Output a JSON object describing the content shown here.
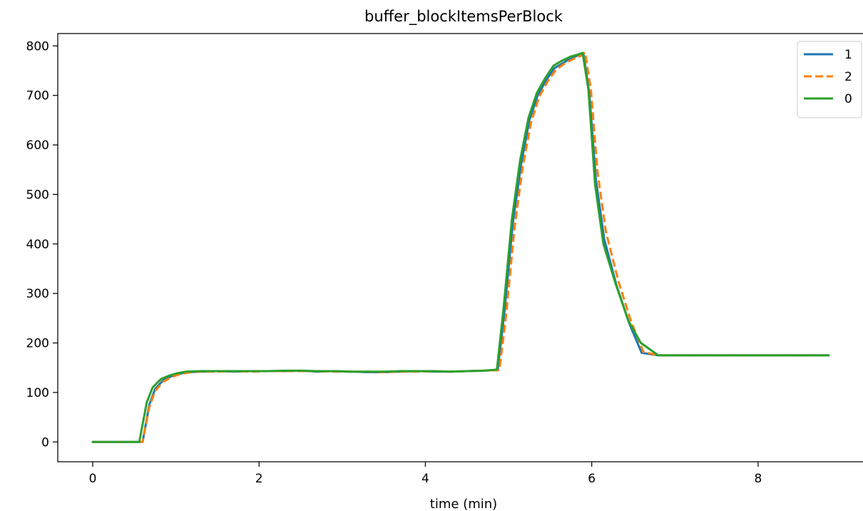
{
  "chart_data": {
    "type": "line",
    "title": "buffer_blockItemsPerBlock",
    "xlabel": "time (min)",
    "ylabel": "",
    "xlim": [
      -0.42,
      9.27
    ],
    "ylim": [
      -40,
      825
    ],
    "xticks": [
      0,
      2,
      4,
      6,
      8
    ],
    "yticks": [
      0,
      100,
      200,
      300,
      400,
      500,
      600,
      700,
      800
    ],
    "legend_position": "upper right",
    "grid": false,
    "series": [
      {
        "name": "1",
        "color": "#1f77b4",
        "dash": "solid",
        "x": [
          0,
          0.15,
          0.3,
          0.45,
          0.6,
          0.68,
          0.75,
          0.85,
          0.95,
          1.05,
          1.15,
          1.3,
          1.5,
          1.7,
          1.9,
          2.1,
          2.3,
          2.5,
          2.7,
          2.9,
          3.1,
          3.3,
          3.5,
          3.7,
          3.9,
          4.1,
          4.3,
          4.5,
          4.7,
          4.87,
          4.95,
          5.05,
          5.15,
          5.25,
          5.35,
          5.45,
          5.55,
          5.65,
          5.75,
          5.85,
          5.9,
          5.97,
          6.05,
          6.15,
          6.3,
          6.45,
          6.6,
          6.8,
          7.0,
          7.5,
          8.0,
          8.5,
          8.85
        ],
        "y": [
          0,
          0,
          0,
          0,
          0,
          75,
          107,
          125,
          133,
          138,
          141,
          142,
          143,
          142,
          143,
          143,
          143,
          144,
          142,
          143,
          142,
          141,
          141,
          142,
          143,
          142,
          142,
          143,
          144,
          146,
          262,
          440,
          560,
          650,
          700,
          730,
          755,
          765,
          775,
          782,
          785,
          705,
          530,
          410,
          315,
          240,
          180,
          175,
          175,
          175,
          175,
          175,
          175
        ]
      },
      {
        "name": "2",
        "color": "#ff7f0e",
        "dash": "dashed",
        "x": [
          0,
          0.15,
          0.3,
          0.45,
          0.6,
          0.68,
          0.75,
          0.85,
          0.95,
          1.05,
          1.15,
          1.3,
          1.5,
          1.7,
          1.9,
          2.1,
          2.3,
          2.5,
          2.7,
          2.9,
          3.1,
          3.3,
          3.5,
          3.7,
          3.9,
          4.1,
          4.3,
          4.5,
          4.7,
          4.89,
          4.97,
          5.07,
          5.17,
          5.27,
          5.37,
          5.47,
          5.57,
          5.67,
          5.77,
          5.87,
          5.92,
          5.99,
          6.07,
          6.17,
          6.32,
          6.47,
          6.62,
          6.8,
          7.0,
          7.5,
          8.0,
          8.5,
          8.85
        ],
        "y": [
          0,
          0,
          0,
          0,
          0,
          70,
          103,
          122,
          131,
          137,
          140,
          142,
          142,
          143,
          142,
          143,
          143,
          143,
          143,
          142,
          142,
          142,
          141,
          142,
          142,
          143,
          142,
          143,
          144,
          145,
          255,
          430,
          555,
          645,
          698,
          728,
          752,
          764,
          773,
          780,
          787,
          712,
          545,
          425,
          325,
          245,
          182,
          175,
          175,
          175,
          175,
          175,
          175
        ]
      },
      {
        "name": "0",
        "color": "#2ca02c",
        "dash": "solid",
        "x": [
          0,
          0.15,
          0.3,
          0.45,
          0.56,
          0.65,
          0.72,
          0.82,
          0.92,
          1.02,
          1.12,
          1.3,
          1.5,
          1.7,
          1.9,
          2.1,
          2.3,
          2.5,
          2.7,
          2.9,
          3.1,
          3.3,
          3.5,
          3.7,
          3.9,
          4.1,
          4.3,
          4.5,
          4.7,
          4.86,
          4.94,
          5.04,
          5.14,
          5.24,
          5.34,
          5.44,
          5.54,
          5.64,
          5.74,
          5.84,
          5.89,
          5.96,
          6.04,
          6.14,
          6.29,
          6.44,
          6.59,
          6.8,
          7.0,
          7.5,
          8.0,
          8.5,
          8.85
        ],
        "y": [
          0,
          0,
          0,
          0,
          0,
          80,
          110,
          127,
          134,
          139,
          142,
          143,
          143,
          143,
          143,
          143,
          144,
          144,
          143,
          143,
          142,
          142,
          142,
          143,
          143,
          143,
          142,
          143,
          144,
          146,
          270,
          450,
          570,
          655,
          705,
          735,
          760,
          770,
          778,
          783,
          786,
          712,
          520,
          400,
          318,
          245,
          200,
          175,
          175,
          175,
          175,
          175,
          175
        ]
      }
    ]
  }
}
